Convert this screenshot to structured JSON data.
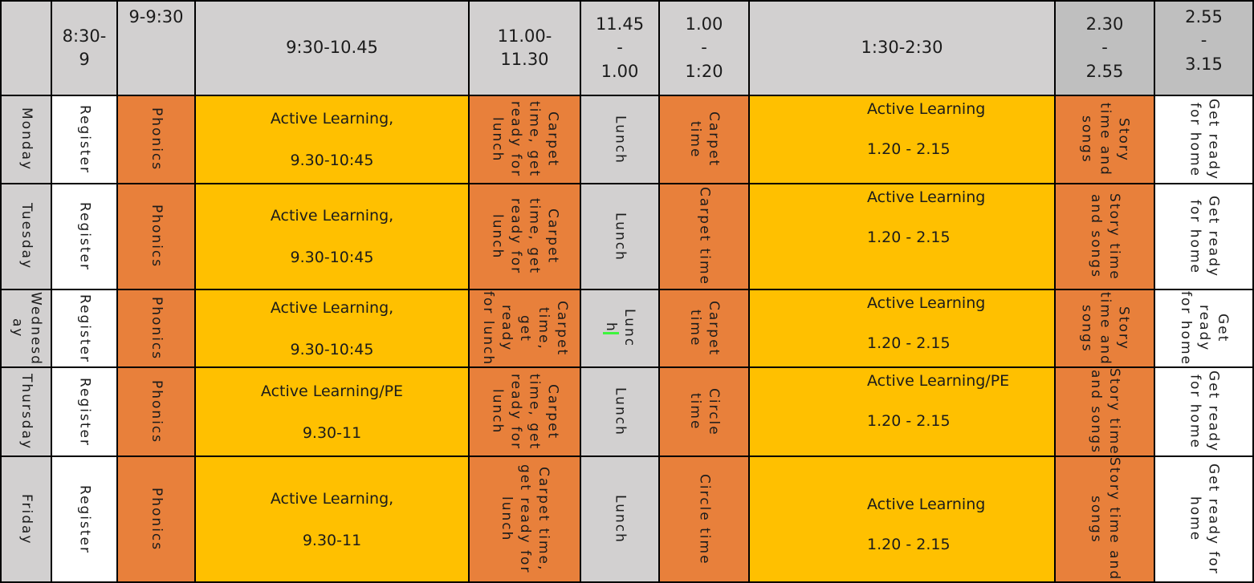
{
  "table": {
    "header": [
      "",
      "8:30-\n9",
      "9-9:30",
      "9:30-10.45",
      "11.00-\n11.30",
      "11.45\n-\n1.00",
      "1.00\n-\n1:20",
      "1:30-2:30",
      "2.30\n-\n2.55",
      "2.55\n-\n3.15"
    ],
    "rows": [
      {
        "day": "Monday",
        "register": "Register",
        "phonics": "Phonics",
        "morning_title": "Active Learning,",
        "morning_time": "9.30-10:45",
        "carpet_lunch": "Carpet time, get ready for lunch",
        "lunch": "Lunch",
        "carpet": "Carpet time",
        "afternoon_title": "Active Learning",
        "afternoon_time": "1.20 - 2.15",
        "story": "Story time and songs",
        "home": "Get ready for home"
      },
      {
        "day": "Tuesday",
        "register": "Register",
        "phonics": "Phonics",
        "morning_title": "Active Learning,",
        "morning_time": "9.30-10:45",
        "carpet_lunch": "Carpet time, get ready for lunch",
        "lunch": "Lunch",
        "carpet": "Carpet time",
        "afternoon_title": "Active Learning",
        "afternoon_time": "1.20 - 2.15",
        "story": "Story time and songs",
        "home": "Get ready for home"
      },
      {
        "day": "Wednesday",
        "register": "Register",
        "phonics": "Phonics",
        "morning_title": "Active Learning,",
        "morning_time": "9.30-10:45",
        "carpet_lunch": "Carpet time, get ready for lunch",
        "lunch_parts": [
          "Lunc",
          "h"
        ],
        "carpet": "Carpet time",
        "afternoon_title": "Active Learning",
        "afternoon_time": "1.20 - 2.15",
        "story": "Story time and songs",
        "home": "Get ready for home"
      },
      {
        "day": "Thursday",
        "register": "Register",
        "phonics": "Phonics",
        "morning_title": "Active Learning/PE",
        "morning_time": "9.30-11",
        "carpet_lunch": "Carpet time, get ready for lunch",
        "lunch": "Lunch",
        "carpet": "Circle time",
        "afternoon_title": "Active Learning/PE",
        "afternoon_time": "1.20 - 2.15",
        "story": "Story time and songs",
        "home": "Get ready for home"
      },
      {
        "day": "Friday",
        "register": "Register",
        "phonics": "Phonics",
        "morning_title": "Active Learning,",
        "morning_time": "9.30-11",
        "carpet_lunch": "Carpet time, get ready for lunch",
        "lunch": "Lunch",
        "carpet": "Circle time",
        "afternoon_title": "Active Learning",
        "afternoon_time": "1.20 - 2.15",
        "story": "Story time and songs",
        "home": "Get ready for home"
      }
    ]
  },
  "colors": {
    "orange": "#e8803b",
    "yellow": "#ffc000",
    "gray_light": "#d2d0d0",
    "gray_dark": "#bfbfbf",
    "white": "#ffffff",
    "border": "#000000",
    "text": "#1b1b1b",
    "green_mark": "#3df53d"
  }
}
